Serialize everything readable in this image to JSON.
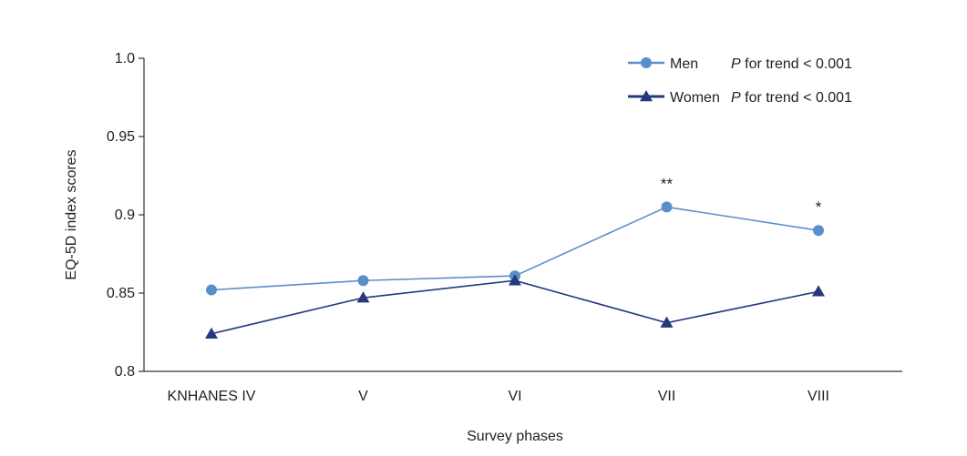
{
  "chart_data": {
    "type": "line",
    "categories": [
      "KNHANES IV",
      "V",
      "VI",
      "VII",
      "VIII"
    ],
    "ylim": [
      0.8,
      1.0
    ],
    "yticks": [
      {
        "value": 0.8,
        "label": "0.8"
      },
      {
        "value": 0.85,
        "label": "0.85"
      },
      {
        "value": 0.9,
        "label": "0.9"
      },
      {
        "value": 0.95,
        "label": "0.95"
      },
      {
        "value": 1.0,
        "label": "1.0"
      }
    ],
    "xlabel": "Survey phases",
    "ylabel": "EQ-5D index scores",
    "grid": false,
    "legend_position": "top-right",
    "series": [
      {
        "name": "Men",
        "trend_prefix": "P",
        "trend_text": " for trend < 0.001",
        "marker": "circle",
        "color": "#5b8fc9",
        "values": [
          0.852,
          0.858,
          0.861,
          0.905,
          0.89
        ]
      },
      {
        "name": "Women",
        "trend_prefix": "P",
        "trend_text": " for trend < 0.001",
        "marker": "triangle",
        "color": "#25397f",
        "values": [
          0.824,
          0.847,
          0.858,
          0.831,
          0.851
        ]
      }
    ],
    "annotations": [
      {
        "category_index": 3,
        "series_index": 0,
        "text": "**"
      },
      {
        "category_index": 4,
        "series_index": 0,
        "text": "*"
      }
    ]
  }
}
